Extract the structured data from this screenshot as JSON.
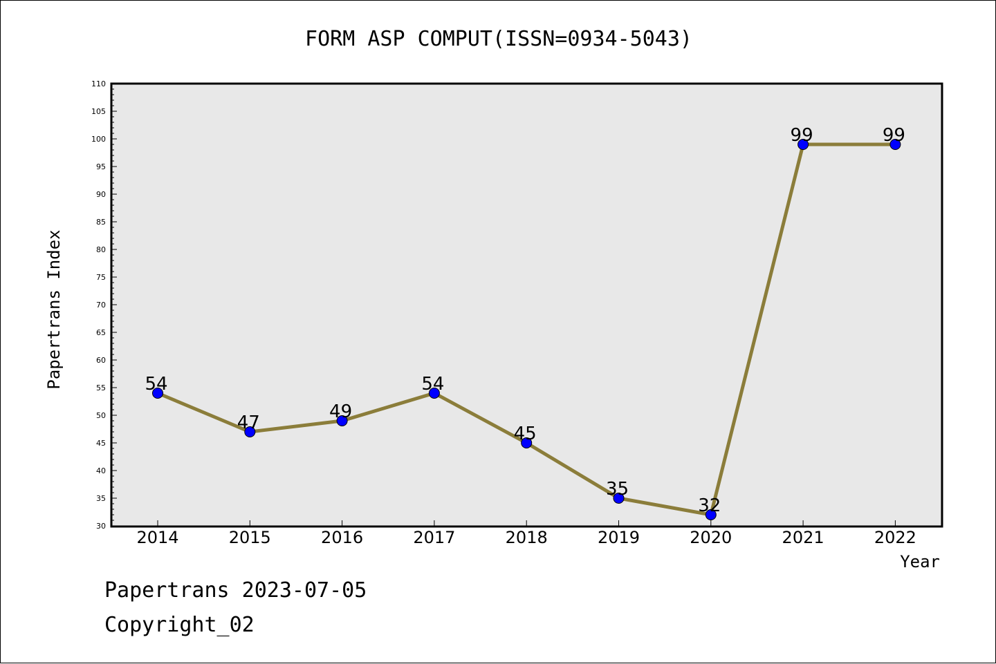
{
  "footer": {
    "line1": "Papertrans 2023-07-05",
    "line2": "Copyright_02"
  },
  "chart_data": {
    "type": "line",
    "title": "FORM ASP COMPUT(ISSN=0934-5043)",
    "xlabel": "Year",
    "ylabel": "Papertrans Index",
    "categories": [
      "2014",
      "2015",
      "2016",
      "2017",
      "2018",
      "2019",
      "2020",
      "2021",
      "2022"
    ],
    "values": [
      54,
      47,
      49,
      54,
      45,
      35,
      32,
      99,
      99
    ],
    "ylim": [
      30,
      110
    ],
    "ytick_step": 5,
    "data_labels": true,
    "grid": false,
    "colors": {
      "line": "#8B7D3A",
      "marker": "#0000FF",
      "plot_background": "#E8E8E8"
    }
  }
}
